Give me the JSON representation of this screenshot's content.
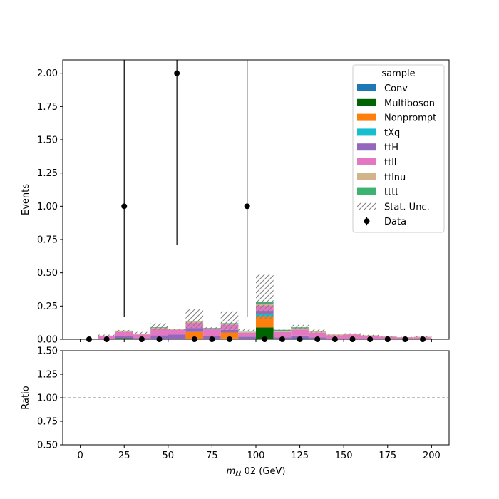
{
  "chart_data": [
    {
      "type": "bar",
      "stacked": true,
      "ylabel": "Events",
      "ylim": [
        0,
        2.1
      ],
      "xlim": [
        -10,
        210
      ],
      "yticks": [
        "0.00",
        "0.25",
        "0.50",
        "0.75",
        "1.00",
        "1.25",
        "1.50",
        "1.75",
        "2.00"
      ],
      "bins": [
        [
          0,
          10
        ],
        [
          10,
          20
        ],
        [
          20,
          30
        ],
        [
          30,
          40
        ],
        [
          40,
          50
        ],
        [
          50,
          60
        ],
        [
          60,
          70
        ],
        [
          70,
          80
        ],
        [
          80,
          90
        ],
        [
          90,
          100
        ],
        [
          100,
          110
        ],
        [
          110,
          120
        ],
        [
          120,
          130
        ],
        [
          130,
          140
        ],
        [
          140,
          150
        ],
        [
          150,
          160
        ],
        [
          160,
          170
        ],
        [
          170,
          180
        ],
        [
          180,
          190
        ],
        [
          190,
          200
        ]
      ],
      "legend_title": "sample",
      "legend_position": "upper right",
      "series": [
        {
          "name": "Conv",
          "color": "#1f77b4",
          "values": [
            0,
            0,
            0.004,
            0,
            0,
            0,
            0,
            0,
            0.006,
            0,
            0.004,
            0,
            0.008,
            0,
            0,
            0,
            0,
            0,
            0,
            0
          ]
        },
        {
          "name": "Multiboson",
          "color": "#006400",
          "values": [
            0,
            0,
            0.005,
            0,
            0,
            0,
            0,
            0,
            0,
            0,
            0.085,
            0,
            0,
            0,
            0,
            0,
            0,
            0,
            0,
            0
          ]
        },
        {
          "name": "Nonprompt",
          "color": "#ff7f0e",
          "values": [
            0,
            0,
            0,
            0,
            0.004,
            0,
            0.055,
            0,
            0.045,
            0,
            0.085,
            0,
            0,
            0,
            0,
            0,
            0,
            0,
            0,
            0
          ]
        },
        {
          "name": "tXq",
          "color": "#17becf",
          "values": [
            0,
            0,
            0,
            0,
            0,
            0,
            0,
            0,
            0,
            0,
            0.015,
            0,
            0,
            0,
            0,
            0,
            0,
            0,
            0,
            0
          ]
        },
        {
          "name": "ttH",
          "color": "#9467bd",
          "values": [
            0,
            0.005,
            0.015,
            0.01,
            0.025,
            0.035,
            0.03,
            0.025,
            0.02,
            0.02,
            0.025,
            0.015,
            0.02,
            0.015,
            0.005,
            0.005,
            0.005,
            0.003,
            0.003,
            0.003
          ]
        },
        {
          "name": "ttll",
          "color": "#e377c2",
          "values": [
            0,
            0.018,
            0.03,
            0.025,
            0.05,
            0.035,
            0.04,
            0.05,
            0.04,
            0.03,
            0.04,
            0.04,
            0.045,
            0.035,
            0.025,
            0.03,
            0.02,
            0.015,
            0.01,
            0.012
          ]
        },
        {
          "name": "ttlnu",
          "color": "#d2b48c",
          "values": [
            0,
            0.005,
            0.008,
            0.008,
            0.008,
            0.006,
            0.008,
            0.006,
            0.008,
            0.005,
            0.01,
            0.008,
            0.01,
            0.008,
            0.006,
            0.006,
            0.005,
            0.004,
            0.003,
            0.004
          ]
        },
        {
          "name": "tttt",
          "color": "#3cb371",
          "values": [
            0,
            0,
            0.003,
            0,
            0.004,
            0,
            0.004,
            0.004,
            0.003,
            0.002,
            0.018,
            0.008,
            0.007,
            0.005,
            0,
            0,
            0,
            0,
            0,
            0
          ]
        }
      ],
      "stat_unc": {
        "name": "Stat. Unc.",
        "up": [
          0,
          0.035,
          0.07,
          0.055,
          0.12,
          0.08,
          0.225,
          0.09,
          0.21,
          0.08,
          0.49,
          0.08,
          0.11,
          0.08,
          0.04,
          0.045,
          0.035,
          0.025,
          0.018,
          0.022
        ],
        "down": [
          0,
          0.025,
          0.055,
          0.04,
          0.07,
          0.07,
          0.085,
          0.075,
          0.07,
          0.06,
          0.15,
          0.065,
          0.075,
          0.05,
          0.03,
          0.035,
          0.025,
          0.018,
          0.014,
          0.016
        ]
      },
      "data": {
        "name": "Data",
        "x": [
          5,
          15,
          25,
          35,
          45,
          55,
          65,
          75,
          85,
          95,
          105,
          115,
          125,
          135,
          145,
          155,
          165,
          175,
          185,
          195
        ],
        "y": [
          0,
          0,
          1,
          0,
          0,
          2,
          0,
          0,
          0,
          1,
          0,
          0,
          0,
          0,
          0,
          0,
          0,
          0,
          0,
          0
        ],
        "yerr_up": [
          0,
          0,
          2.3,
          0,
          0,
          2.6,
          0,
          0,
          0,
          2.3,
          0,
          0,
          0,
          0,
          0,
          0,
          0,
          0,
          0,
          0
        ],
        "yerr_down": [
          0,
          0,
          0.83,
          0,
          0,
          1.29,
          0,
          0,
          0,
          0.83,
          0,
          0,
          0,
          0,
          0,
          0,
          0,
          0,
          0,
          0
        ]
      }
    },
    {
      "type": "line",
      "xlabel": "$m_{\\ell\\ell}$ 02 (GeV)",
      "ylabel": "Ratio",
      "ylim": [
        0.5,
        1.5
      ],
      "xlim": [
        -10,
        210
      ],
      "yticks": [
        "0.50",
        "0.75",
        "1.00",
        "1.25",
        "1.50"
      ],
      "xticks": [
        "0",
        "25",
        "50",
        "75",
        "100",
        "125",
        "150",
        "175",
        "200"
      ],
      "reference_line": 1.0,
      "series": []
    }
  ]
}
